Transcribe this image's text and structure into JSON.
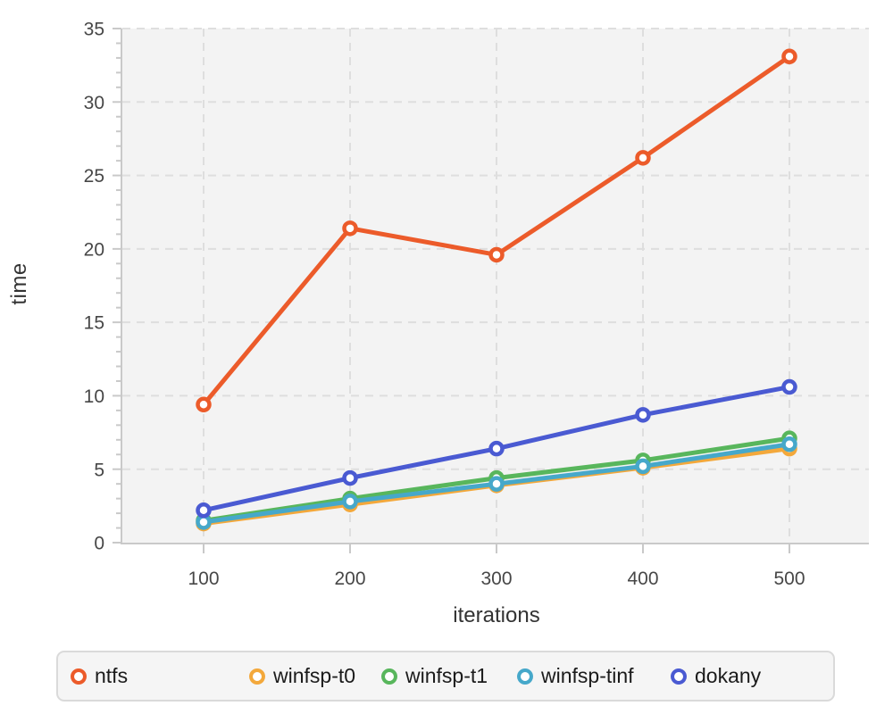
{
  "chart_data": {
    "type": "line",
    "x": [
      100,
      200,
      300,
      400,
      500
    ],
    "xlabel": "iterations",
    "ylabel": "time",
    "xlim": [
      100,
      500
    ],
    "ylim": [
      0,
      35
    ],
    "xticks": [
      100,
      200,
      300,
      400,
      500
    ],
    "yticks_major": [
      0,
      5,
      10,
      15,
      20,
      25,
      30,
      35
    ],
    "ytick_minor_step": 1,
    "grid": "dashed-both-axes",
    "plot_background": "#f3f3f3",
    "grid_color": "#dedede",
    "axis_line_color": "#c9c9c9",
    "tick_label_color": "#474747",
    "legend_position": "bottom",
    "marker_style": "open-circle",
    "series": [
      {
        "name": "ntfs",
        "color": "#ec5b2a",
        "values": [
          9.4,
          21.4,
          19.6,
          26.2,
          33.1
        ]
      },
      {
        "name": "winfsp-t0",
        "color": "#f3a83b",
        "values": [
          1.3,
          2.6,
          3.9,
          5.1,
          6.4
        ]
      },
      {
        "name": "winfsp-t1",
        "color": "#58b65c",
        "values": [
          1.5,
          3.0,
          4.4,
          5.6,
          7.1
        ]
      },
      {
        "name": "winfsp-tinf",
        "color": "#46a8ca",
        "values": [
          1.4,
          2.8,
          4.0,
          5.2,
          6.7
        ]
      },
      {
        "name": "dokany",
        "color": "#4a5ad2",
        "values": [
          2.2,
          4.4,
          6.4,
          8.7,
          10.6
        ]
      }
    ],
    "legend_item_widths": [
      200,
      148,
      152,
      172,
      140
    ]
  }
}
